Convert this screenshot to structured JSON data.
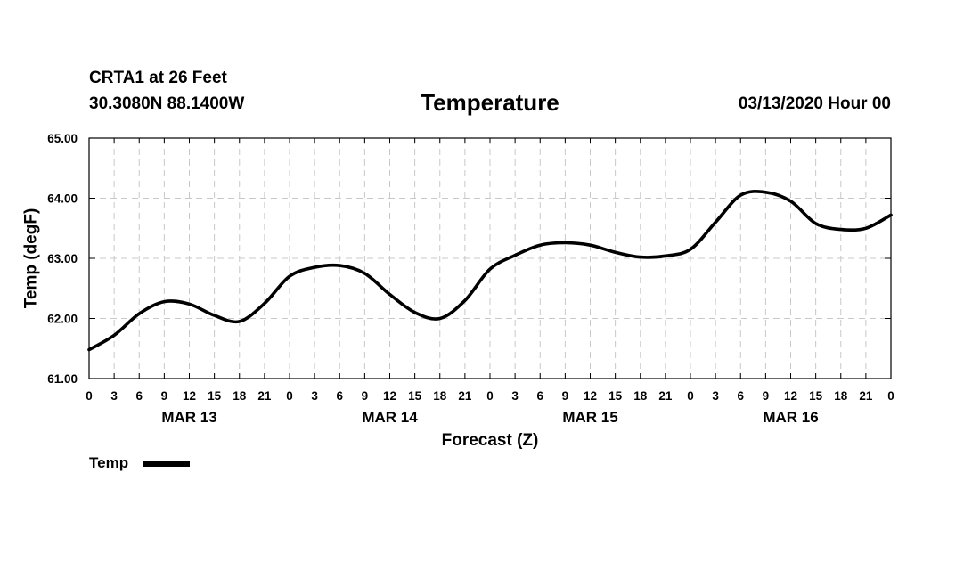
{
  "header": {
    "station": "CRTA1 at 26 Feet",
    "coords": "30.3080N 88.1400W",
    "title": "Temperature",
    "date": "03/13/2020 Hour 00"
  },
  "chart_data": {
    "type": "line",
    "title": "Temperature",
    "xlabel": "Forecast (Z)",
    "ylabel": "Temp (degF)",
    "xlim": [
      0,
      96
    ],
    "ylim": [
      61.0,
      65.0
    ],
    "y_ticks": [
      61.0,
      62.0,
      63.0,
      64.0,
      65.0
    ],
    "y_tick_labels": [
      "61.00",
      "62.00",
      "63.00",
      "64.00",
      "65.00"
    ],
    "x_tick_labels": [
      "0",
      "3",
      "6",
      "9",
      "12",
      "15",
      "18",
      "21",
      "0",
      "3",
      "6",
      "9",
      "12",
      "15",
      "18",
      "21",
      "0",
      "3",
      "6",
      "9",
      "12",
      "15",
      "18",
      "21",
      "0",
      "3",
      "6",
      "9",
      "12",
      "15",
      "18",
      "21",
      "0"
    ],
    "day_labels": [
      {
        "label": "MAR 13",
        "hour": 12
      },
      {
        "label": "MAR 14",
        "hour": 36
      },
      {
        "label": "MAR 15",
        "hour": 60
      },
      {
        "label": "MAR 16",
        "hour": 84
      }
    ],
    "grid": true,
    "legend_position": "bottom-left",
    "series": [
      {
        "name": "Temp",
        "color": "#000000",
        "x": [
          0,
          3,
          6,
          9,
          12,
          15,
          18,
          21,
          24,
          27,
          30,
          33,
          36,
          39,
          42,
          45,
          48,
          51,
          54,
          57,
          60,
          63,
          66,
          69,
          72,
          75,
          78,
          81,
          84,
          87,
          90,
          93,
          96
        ],
        "values": [
          61.48,
          61.72,
          62.08,
          62.28,
          62.24,
          62.05,
          61.95,
          62.25,
          62.7,
          62.85,
          62.88,
          62.75,
          62.4,
          62.1,
          62.0,
          62.3,
          62.82,
          63.05,
          63.22,
          63.26,
          63.22,
          63.1,
          63.02,
          63.04,
          63.15,
          63.6,
          64.05,
          64.1,
          63.95,
          63.58,
          63.48,
          63.5,
          63.72
        ]
      }
    ]
  }
}
